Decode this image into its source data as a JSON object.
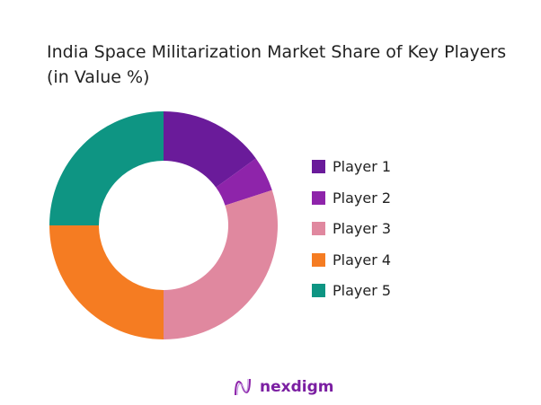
{
  "chart_data": {
    "type": "pie",
    "donut": true,
    "title": "India Space Militarization Market Share of Key Players (in Value %)",
    "categories": [
      "Player 1",
      "Player 2",
      "Player 3",
      "Player 4",
      "Player 5"
    ],
    "values": [
      15,
      5,
      30,
      25,
      25
    ],
    "colors": [
      "#6a1b9a",
      "#8e24aa",
      "#e0889f",
      "#f57c22",
      "#0e9583"
    ],
    "legend_position": "right"
  },
  "brand": {
    "name": "nexdigm",
    "color": "#7b1fa2"
  }
}
